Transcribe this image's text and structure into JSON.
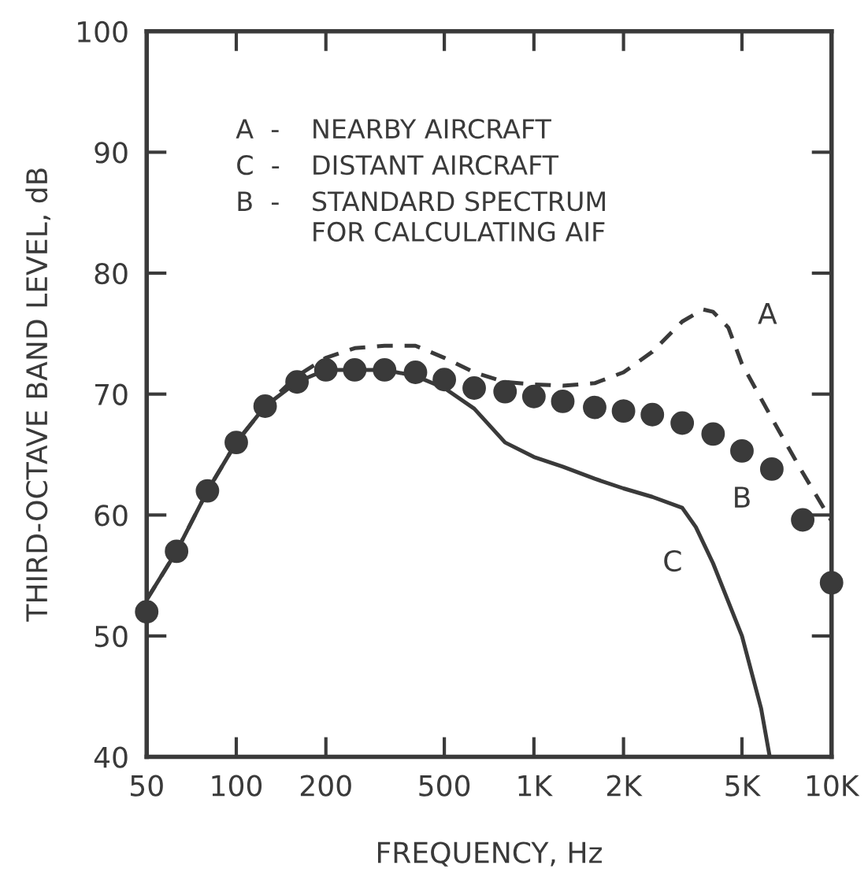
{
  "chart_data": {
    "type": "line",
    "xlabel": "FREQUENCY, Hz",
    "ylabel": "THIRD-OCTAVE BAND LEVEL, dB",
    "log": "x",
    "xlim": [
      50,
      10000
    ],
    "ylim": [
      40,
      100
    ],
    "xticks": [
      50,
      100,
      200,
      500,
      {
        "value": 1000,
        "label": "1K"
      },
      {
        "value": 2000,
        "label": "2K"
      },
      {
        "value": 5000,
        "label": "5K"
      },
      {
        "value": 10000,
        "label": "10K"
      }
    ],
    "yticks": [
      40,
      50,
      60,
      70,
      80,
      90,
      100
    ],
    "grid": false,
    "legend": "center right",
    "annotations": [
      "A - NEARBY AIRCRAFT",
      "C - DISTANT AIRCRAFT",
      "B - STANDARD SPECTRUM\nFOR CALCULATING AIF"
    ],
    "series": [
      {
        "name": "A",
        "color": "#3a3a3a",
        "line_style": "dashed",
        "marker": "none",
        "x": [
          50,
          63,
          80,
          100,
          125,
          160,
          200,
          250,
          315,
          400,
          500,
          630,
          800,
          1000,
          1250,
          1600,
          2000,
          2500,
          3150,
          3700,
          4000,
          4500,
          5000,
          6300,
          8000,
          10000
        ],
        "values": [
          53,
          57,
          62,
          66,
          69,
          71.5,
          73,
          73.8,
          74,
          74,
          73,
          71.8,
          71,
          70.8,
          70.7,
          70.9,
          71.8,
          73.5,
          76,
          77,
          76.8,
          75.5,
          72.5,
          68,
          63.5,
          59.5
        ]
      },
      {
        "name": "B",
        "color": "#3a3a3a",
        "type": "scatter",
        "marker": "circle",
        "x": [
          50,
          63,
          80,
          100,
          125,
          160,
          200,
          250,
          315,
          400,
          500,
          630,
          800,
          1000,
          1250,
          1600,
          2000,
          2500,
          3150,
          4000,
          5000,
          6300,
          8000,
          10000
        ],
        "values": [
          52,
          57,
          62,
          66,
          69,
          71,
          72,
          72,
          72,
          71.8,
          71.2,
          70.5,
          70.2,
          69.8,
          69.4,
          68.9,
          68.6,
          68.3,
          67.6,
          66.7,
          65.3,
          63.8,
          59.6,
          54.4
        ]
      },
      {
        "name": "C",
        "color": "#3a3a3a",
        "line_style": "solid",
        "marker": "none",
        "x": [
          50,
          63,
          80,
          100,
          125,
          160,
          200,
          250,
          315,
          400,
          500,
          630,
          800,
          1000,
          1250,
          1600,
          2000,
          2500,
          3150,
          3500,
          4000,
          5000,
          5800,
          6200
        ],
        "values": [
          53,
          57,
          62,
          66,
          69,
          71,
          72,
          72,
          72,
          71.5,
          70.5,
          68.8,
          66,
          64.8,
          64,
          63,
          62.2,
          61.5,
          60.6,
          59,
          56,
          50,
          44,
          40
        ]
      }
    ]
  }
}
